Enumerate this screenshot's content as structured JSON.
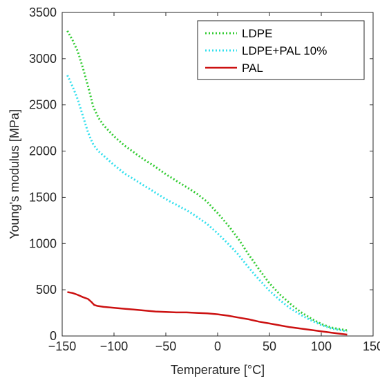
{
  "chart_data": {
    "type": "line",
    "title": "",
    "xlabel": "Temperature [°C]",
    "ylabel": "Young's modulus [MPa]",
    "xlim": [
      -150,
      150
    ],
    "ylim": [
      0,
      3500
    ],
    "x_ticks": [
      -150,
      -100,
      -50,
      0,
      50,
      100,
      150
    ],
    "y_ticks": [
      0,
      500,
      1000,
      1500,
      2000,
      2500,
      3000,
      3500
    ],
    "x_tick_labels": [
      "−150",
      "−100",
      "−50",
      "0",
      "50",
      "100",
      "150"
    ],
    "y_tick_labels": [
      "0",
      "500",
      "1000",
      "1500",
      "2000",
      "2500",
      "3000",
      "3500"
    ],
    "grid": false,
    "legend_position": "top-right",
    "series": [
      {
        "name": "LDPE",
        "color": "#33cc33",
        "style": "dotted",
        "x": [
          -145,
          -140,
          -135,
          -130,
          -125,
          -120,
          -115,
          -110,
          -100,
          -90,
          -80,
          -70,
          -60,
          -50,
          -40,
          -30,
          -20,
          -10,
          0,
          10,
          20,
          30,
          40,
          50,
          60,
          70,
          80,
          90,
          100,
          110,
          120,
          125
        ],
        "y": [
          3300,
          3200,
          3080,
          2900,
          2700,
          2480,
          2360,
          2280,
          2160,
          2060,
          1980,
          1900,
          1830,
          1750,
          1680,
          1610,
          1540,
          1450,
          1330,
          1200,
          1050,
          880,
          720,
          570,
          450,
          350,
          260,
          190,
          130,
          90,
          70,
          60
        ]
      },
      {
        "name": "LDPE+PAL 10%",
        "color": "#33e0ee",
        "style": "dotted",
        "x": [
          -145,
          -140,
          -135,
          -130,
          -125,
          -120,
          -115,
          -110,
          -100,
          -90,
          -80,
          -70,
          -60,
          -50,
          -40,
          -30,
          -20,
          -10,
          0,
          10,
          20,
          30,
          40,
          50,
          60,
          70,
          80,
          90,
          100,
          110,
          120,
          125
        ],
        "y": [
          2820,
          2700,
          2560,
          2380,
          2200,
          2070,
          2000,
          1950,
          1850,
          1760,
          1690,
          1620,
          1550,
          1480,
          1420,
          1360,
          1290,
          1210,
          1110,
          1000,
          880,
          740,
          610,
          490,
          390,
          300,
          230,
          170,
          120,
          80,
          60,
          50
        ]
      },
      {
        "name": "PAL",
        "color": "#cc1111",
        "style": "solid",
        "x": [
          -145,
          -140,
          -135,
          -130,
          -125,
          -122,
          -119,
          -116,
          -110,
          -100,
          -90,
          -80,
          -70,
          -60,
          -50,
          -40,
          -30,
          -20,
          -10,
          0,
          10,
          20,
          30,
          40,
          50,
          60,
          70,
          80,
          90,
          100,
          110,
          120,
          125
        ],
        "y": [
          475,
          465,
          445,
          420,
          400,
          370,
          335,
          325,
          315,
          305,
          295,
          285,
          275,
          265,
          260,
          255,
          255,
          250,
          245,
          235,
          220,
          200,
          180,
          155,
          135,
          115,
          95,
          80,
          65,
          50,
          35,
          22,
          15
        ]
      }
    ]
  }
}
